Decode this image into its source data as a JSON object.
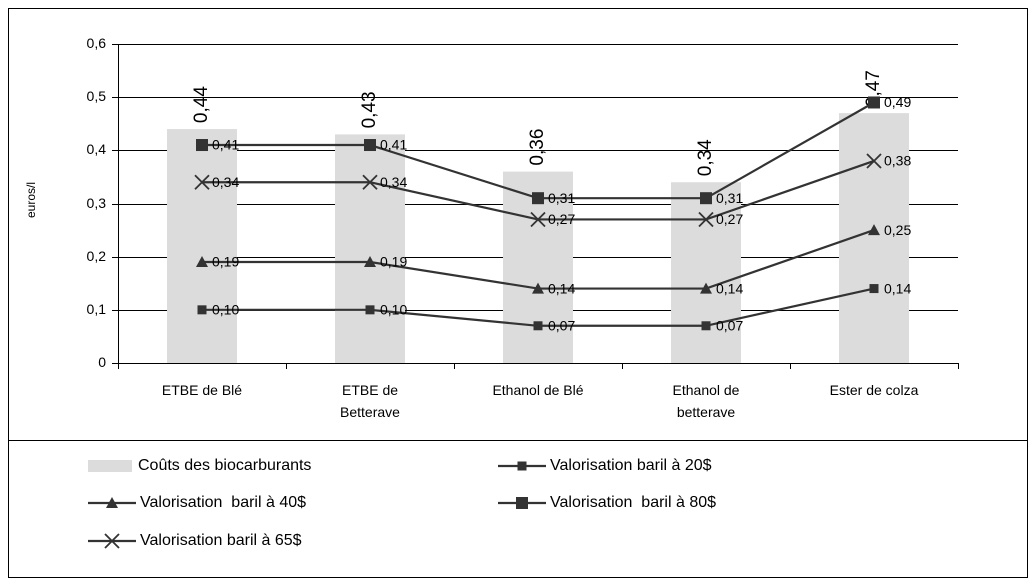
{
  "chart_data": {
    "type": "bar",
    "y_label": "euros/l",
    "categories": [
      "ETBE de Blé",
      "ETBE de Betterave",
      "Ethanol de Blé",
      "Ethanol de betterave",
      "Ester de colza"
    ],
    "series": [
      {
        "name": "Coûts des biocarburants",
        "type": "bar",
        "color": "#dcdcdc",
        "values": [
          0.44,
          0.43,
          0.36,
          0.34,
          0.47
        ],
        "value_labels": [
          "0,44",
          "0,43",
          "0,36",
          "0,34",
          "0,47"
        ]
      },
      {
        "name": "Valorisation baril à 20$",
        "type": "line",
        "marker": "square-small",
        "color": "#333333",
        "values": [
          0.1,
          0.1,
          0.07,
          0.07,
          0.14
        ],
        "value_labels": [
          "0,10",
          "0,10",
          "0,07",
          "0,07",
          "0,14"
        ]
      },
      {
        "name": "Valorisation  baril à 40$",
        "type": "line",
        "marker": "triangle",
        "color": "#333333",
        "values": [
          0.19,
          0.19,
          0.14,
          0.14,
          0.25
        ],
        "value_labels": [
          "0,19",
          "0,19",
          "0,14",
          "0,14",
          "0,25"
        ]
      },
      {
        "name": "Valorisation  baril à 80$",
        "type": "line",
        "marker": "square",
        "color": "#333333",
        "values": [
          0.41,
          0.41,
          0.31,
          0.31,
          0.49
        ],
        "value_labels": [
          "0,41",
          "0,41",
          "0,31",
          "0,31",
          "0,49"
        ]
      },
      {
        "name": "Valorisation baril à 65$",
        "type": "line",
        "marker": "x",
        "color": "#333333",
        "values": [
          0.34,
          0.34,
          0.27,
          0.27,
          0.38
        ],
        "value_labels": [
          "0,34",
          "0,34",
          "0,27",
          "0,27",
          "0,38"
        ]
      }
    ],
    "ylim": [
      0,
      0.6
    ],
    "yticks": [
      0,
      {
        "value": 0.1,
        "label": "0,1"
      },
      {
        "value": 0.2,
        "label": "0,2"
      },
      {
        "value": 0.3,
        "label": "0,3"
      },
      {
        "value": 0.4,
        "label": "0,4"
      },
      {
        "value": 0.5,
        "label": "0,5"
      },
      {
        "value": 0.6,
        "label": "0,6"
      }
    ],
    "grid": true,
    "legend": "bottom"
  }
}
